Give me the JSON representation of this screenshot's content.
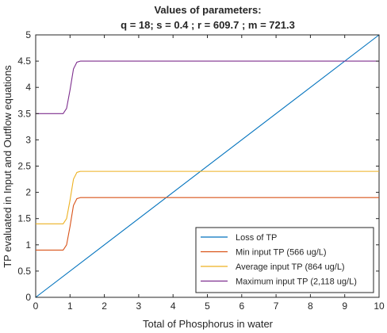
{
  "chart_data": {
    "type": "line",
    "title": "Values of parameters:",
    "subtitle": "q = 18; s = 0.4 ; r = 609.7 ; m = 721.3",
    "xlabel": "Total of Phosphorus in water",
    "ylabel": "TP evaluated in Input and Outflow equations",
    "xlim": [
      0,
      10
    ],
    "ylim": [
      0,
      5
    ],
    "x_ticks": [
      "0",
      "1",
      "2",
      "3",
      "4",
      "5",
      "6",
      "7",
      "8",
      "9",
      "10"
    ],
    "y_ticks": [
      "0",
      "0.5",
      "1",
      "1.5",
      "2",
      "2.5",
      "3",
      "3.5",
      "4",
      "4.5",
      "5"
    ],
    "grid": false,
    "legend_position": "bottom-right",
    "series": [
      {
        "name": "Loss of TP",
        "color": "#0072bd",
        "x": [
          0,
          10
        ],
        "y": [
          0,
          5
        ]
      },
      {
        "name": "Min input TP (566 ug/L)",
        "color": "#d95319",
        "x": [
          0,
          0.8,
          0.9,
          1.0,
          1.1,
          1.2,
          1.3,
          10
        ],
        "y": [
          0.9,
          0.9,
          1.0,
          1.35,
          1.75,
          1.88,
          1.9,
          1.9
        ]
      },
      {
        "name": "Average input TP (864 ug/L)",
        "color": "#edb120",
        "x": [
          0,
          0.8,
          0.9,
          1.0,
          1.1,
          1.2,
          1.3,
          10
        ],
        "y": [
          1.4,
          1.4,
          1.5,
          1.85,
          2.25,
          2.38,
          2.4,
          2.4
        ]
      },
      {
        "name": "Maximum input TP (2,118 ug/L)",
        "color": "#7e2f8e",
        "x": [
          0,
          0.8,
          0.9,
          1.0,
          1.1,
          1.2,
          1.3,
          10
        ],
        "y": [
          3.5,
          3.5,
          3.6,
          3.95,
          4.35,
          4.48,
          4.5,
          4.5
        ]
      }
    ]
  }
}
